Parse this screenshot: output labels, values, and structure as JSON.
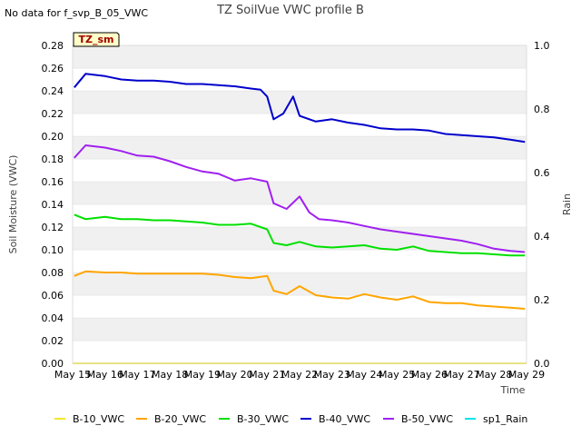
{
  "chart_data": {
    "type": "line",
    "title": "TZ SoilVue VWC profile B",
    "note": "No data for f_svp_B_05_VWC",
    "site_tag": "TZ_sm",
    "xlabel": "Time",
    "ylabel": "Soil Moisture (VWC)",
    "y2label": "Rain",
    "x_ticks": [
      "May 15",
      "May 16",
      "May 17",
      "May 18",
      "May 19",
      "May 20",
      "May 21",
      "May 22",
      "May 23",
      "May 24",
      "May 25",
      "May 26",
      "May 27",
      "May 28",
      "May 29"
    ],
    "y_ticks": [
      "0.00",
      "0.02",
      "0.04",
      "0.06",
      "0.08",
      "0.10",
      "0.12",
      "0.14",
      "0.16",
      "0.18",
      "0.20",
      "0.22",
      "0.24",
      "0.26",
      "0.28"
    ],
    "y2_ticks": [
      "0.0",
      "0.2",
      "0.4",
      "0.6",
      "0.8",
      "1.0"
    ],
    "ylim": [
      0,
      0.28
    ],
    "y2lim": [
      0,
      1.0
    ],
    "grid": "horizontal bands",
    "legend_position": "bottom",
    "series": [
      {
        "name": "B-10_VWC",
        "color": "#f2e82a",
        "x": [
          0,
          14
        ],
        "values": [
          0.0,
          0.0
        ]
      },
      {
        "name": "B-20_VWC",
        "color": "#ffa500",
        "x": [
          0.05,
          0.4,
          1,
          1.5,
          2,
          2.5,
          3,
          3.5,
          4,
          4.5,
          5,
          5.5,
          6,
          6.2,
          6.6,
          7,
          7.5,
          8,
          8.5,
          9,
          9.5,
          10,
          10.5,
          11,
          11.5,
          12,
          12.5,
          13,
          13.5,
          13.95
        ],
        "values": [
          0.077,
          0.081,
          0.08,
          0.08,
          0.079,
          0.079,
          0.079,
          0.079,
          0.079,
          0.078,
          0.076,
          0.075,
          0.077,
          0.064,
          0.061,
          0.068,
          0.06,
          0.058,
          0.057,
          0.061,
          0.058,
          0.056,
          0.059,
          0.054,
          0.053,
          0.053,
          0.051,
          0.05,
          0.049,
          0.048
        ]
      },
      {
        "name": "B-30_VWC",
        "color": "#00e000",
        "x": [
          0.05,
          0.4,
          1,
          1.5,
          2,
          2.5,
          3,
          3.5,
          4,
          4.5,
          5,
          5.5,
          6,
          6.2,
          6.6,
          7,
          7.5,
          8,
          8.5,
          9,
          9.5,
          10,
          10.5,
          11,
          11.5,
          12,
          12.5,
          13,
          13.5,
          13.95
        ],
        "values": [
          0.131,
          0.127,
          0.129,
          0.127,
          0.127,
          0.126,
          0.126,
          0.125,
          0.124,
          0.122,
          0.122,
          0.123,
          0.118,
          0.106,
          0.104,
          0.107,
          0.103,
          0.102,
          0.103,
          0.104,
          0.101,
          0.1,
          0.103,
          0.099,
          0.098,
          0.097,
          0.097,
          0.096,
          0.095,
          0.095
        ]
      },
      {
        "name": "B-40_VWC",
        "color": "#0000cc",
        "x": [
          0.05,
          0.4,
          1,
          1.5,
          2,
          2.5,
          3,
          3.5,
          4,
          4.5,
          5,
          5.5,
          5.8,
          6,
          6.2,
          6.5,
          6.8,
          7,
          7.5,
          8,
          8.5,
          9,
          9.5,
          10,
          10.5,
          11,
          11.5,
          12,
          12.5,
          13,
          13.5,
          13.95
        ],
        "values": [
          0.243,
          0.255,
          0.253,
          0.25,
          0.249,
          0.249,
          0.248,
          0.246,
          0.246,
          0.245,
          0.244,
          0.242,
          0.241,
          0.235,
          0.215,
          0.22,
          0.235,
          0.218,
          0.213,
          0.215,
          0.212,
          0.21,
          0.207,
          0.206,
          0.206,
          0.205,
          0.202,
          0.201,
          0.2,
          0.199,
          0.197,
          0.195
        ]
      },
      {
        "name": "B-50_VWC",
        "color": "#a020f0",
        "x": [
          0.05,
          0.4,
          1,
          1.5,
          2,
          2.5,
          3,
          3.5,
          4,
          4.5,
          5,
          5.5,
          6,
          6.2,
          6.6,
          7,
          7.3,
          7.6,
          8,
          8.5,
          9,
          9.5,
          10,
          10.5,
          11,
          11.5,
          12,
          12.5,
          13,
          13.5,
          13.95
        ],
        "values": [
          0.181,
          0.192,
          0.19,
          0.187,
          0.183,
          0.182,
          0.178,
          0.173,
          0.169,
          0.167,
          0.161,
          0.163,
          0.16,
          0.141,
          0.136,
          0.147,
          0.133,
          0.127,
          0.126,
          0.124,
          0.121,
          0.118,
          0.116,
          0.114,
          0.112,
          0.11,
          0.108,
          0.105,
          0.101,
          0.099,
          0.098
        ]
      },
      {
        "name": "sp1_Rain",
        "color": "#00e5ee",
        "x": [],
        "values": []
      }
    ]
  }
}
